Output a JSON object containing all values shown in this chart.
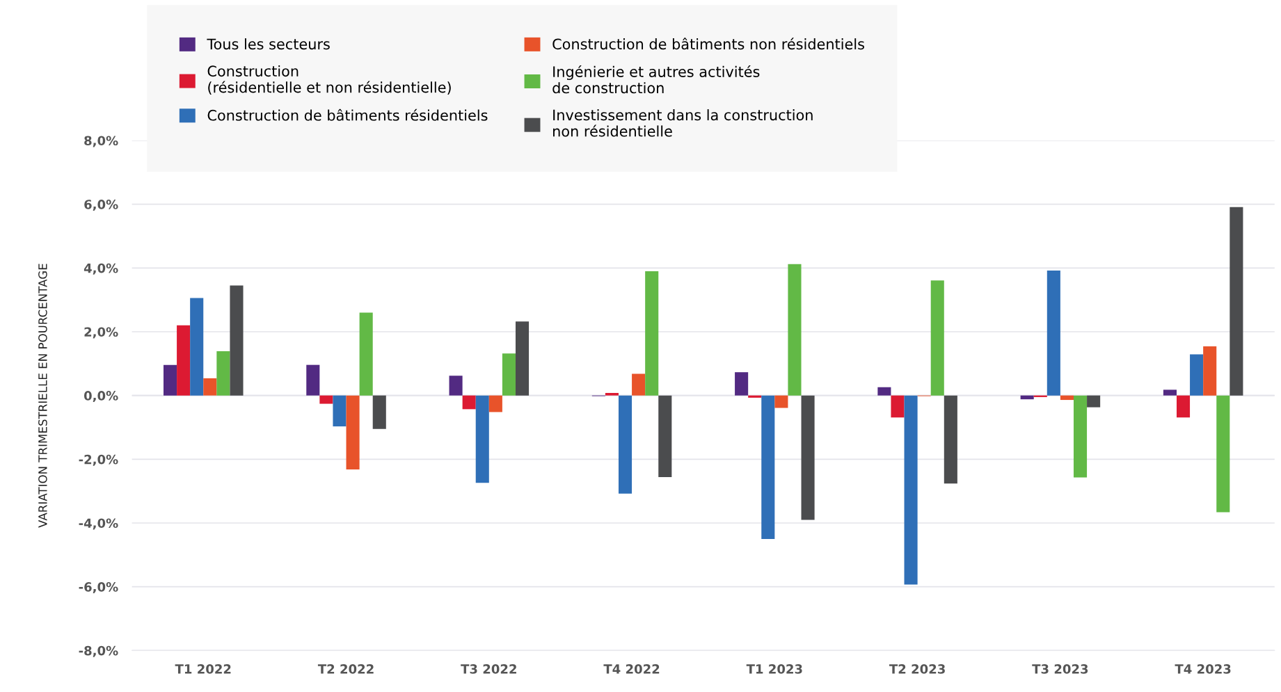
{
  "chart_data": {
    "type": "bar",
    "ylabel": "VARIATION TRIMESTRIELLE EN POURCENTAGE",
    "categories": [
      "T1 2022",
      "T2 2022",
      "T3 2022",
      "T4 2022",
      "T1 2023",
      "T2 2023",
      "T3 2023",
      "T4 2023"
    ],
    "series": [
      {
        "name": "Tous les secteurs",
        "color": "#522a82",
        "values": [
          0.96,
          0.96,
          0.62,
          -0.02,
          0.73,
          0.26,
          -0.12,
          0.18
        ]
      },
      {
        "name": "Construction\n(résidentielle et non résidentielle)",
        "color": "#dc1a32",
        "values": [
          2.2,
          -0.26,
          -0.43,
          0.08,
          -0.07,
          -0.69,
          -0.05,
          -0.69
        ]
      },
      {
        "name": "Construction de bâtiments résidentiels",
        "color": "#2f6fb7",
        "values": [
          3.06,
          -0.97,
          -2.74,
          -3.08,
          -4.5,
          -5.93,
          3.92,
          1.29
        ]
      },
      {
        "name": "Construction de bâtiments non résidentiels",
        "color": "#e8532a",
        "values": [
          0.54,
          -2.32,
          -0.52,
          0.68,
          -0.39,
          -0.02,
          -0.14,
          1.54
        ]
      },
      {
        "name": "Ingénierie et autres activités\nde construction",
        "color": "#62b946",
        "values": [
          1.39,
          2.6,
          1.32,
          3.9,
          4.12,
          3.61,
          -2.57,
          -3.66
        ]
      },
      {
        "name": "Investissement dans la construction\nnon résidentielle",
        "color": "#4b4c4e",
        "values": [
          3.45,
          -1.05,
          2.32,
          -2.56,
          -3.9,
          -2.76,
          -0.37,
          5.91
        ]
      }
    ],
    "ylim": [
      -8,
      8
    ],
    "yticks": [
      {
        "value": -8,
        "label": "-8,0%"
      },
      {
        "value": -6,
        "label": "-6,0%"
      },
      {
        "value": -4,
        "label": "-4,0%"
      },
      {
        "value": -2,
        "label": "-2,0%"
      },
      {
        "value": 0,
        "label": "0,0%"
      },
      {
        "value": 2,
        "label": "2,0%"
      },
      {
        "value": 4,
        "label": "4,0%"
      },
      {
        "value": 6,
        "label": "6,0%"
      },
      {
        "value": 8,
        "label": "8,0%"
      }
    ],
    "grid": "y",
    "legend": "top"
  }
}
